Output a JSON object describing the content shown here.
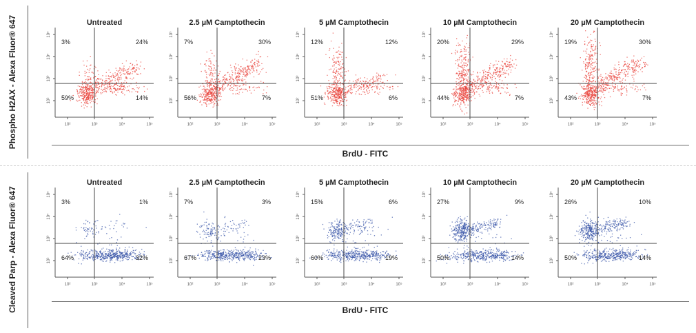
{
  "figure": {
    "panels": [
      {
        "id": "h2ax",
        "ylabel": "Phospho H2AX - Alexa Fluor® 647",
        "xlabel": "BrdU - FITC",
        "color": "#e8413a",
        "plots": [
          {
            "title": "Untreated",
            "quadrants": {
              "ul": "3%",
              "ur": "24%",
              "ll": "59%",
              "lr": "14%"
            }
          },
          {
            "title": "2.5 µM Camptothecin",
            "quadrants": {
              "ul": "7%",
              "ur": "30%",
              "ll": "56%",
              "lr": "7%"
            }
          },
          {
            "title": "5 µM Camptothecin",
            "quadrants": {
              "ul": "12%",
              "ur": "12%",
              "ll": "51%",
              "lr": "6%"
            }
          },
          {
            "title": "10 µM Camptothecin",
            "quadrants": {
              "ul": "20%",
              "ur": "29%",
              "ll": "44%",
              "lr": "7%"
            }
          },
          {
            "title": "20 µM Camptothecin",
            "quadrants": {
              "ul": "19%",
              "ur": "30%",
              "ll": "43%",
              "lr": "7%"
            }
          }
        ]
      },
      {
        "id": "parp",
        "ylabel": "Cleaved Parp - Alexa Fluor® 647",
        "xlabel": "BrdU - FITC",
        "color": "#3a55a8",
        "plots": [
          {
            "title": "Untreated",
            "quadrants": {
              "ul": "3%",
              "ur": "1%",
              "ll": "64%",
              "lr": "32%"
            }
          },
          {
            "title": "2.5 µM Camptothecin",
            "quadrants": {
              "ul": "7%",
              "ur": "3%",
              "ll": "67%",
              "lr": "23%"
            }
          },
          {
            "title": "5 µM Camptothecin",
            "quadrants": {
              "ul": "15%",
              "ur": "6%",
              "ll": "60%",
              "lr": "19%"
            }
          },
          {
            "title": "10 µM Camptothecin",
            "quadrants": {
              "ul": "27%",
              "ur": "9%",
              "ll": "50%",
              "lr": "14%"
            }
          },
          {
            "title": "20 µM Camptothecin",
            "quadrants": {
              "ul": "26%",
              "ur": "10%",
              "ll": "50%",
              "lr": "14%"
            }
          }
        ]
      }
    ]
  },
  "chart_data": [
    {
      "type": "scatter",
      "panel": "h2ax",
      "xlabel": "BrdU - FITC",
      "ylabel": "Phospho H2AX - Alexa Fluor® 647",
      "xscale": "log",
      "yscale": "log",
      "xticks": [
        "10²",
        "10³",
        "10⁴",
        "10⁵"
      ],
      "yticks": [
        "10²",
        "10³",
        "10⁴",
        "10⁵"
      ],
      "series": [
        {
          "title": "Untreated",
          "quadrant_percent": {
            "upper_left": 3,
            "upper_right": 24,
            "lower_left": 59,
            "lower_right": 14
          }
        },
        {
          "title": "2.5 µM Camptothecin",
          "quadrant_percent": {
            "upper_left": 7,
            "upper_right": 30,
            "lower_left": 56,
            "lower_right": 7
          }
        },
        {
          "title": "5 µM Camptothecin",
          "quadrant_percent": {
            "upper_left": 12,
            "upper_right": 12,
            "lower_left": 51,
            "lower_right": 6
          }
        },
        {
          "title": "10 µM Camptothecin",
          "quadrant_percent": {
            "upper_left": 20,
            "upper_right": 29,
            "lower_left": 44,
            "lower_right": 7
          }
        },
        {
          "title": "20 µM Camptothecin",
          "quadrant_percent": {
            "upper_left": 19,
            "upper_right": 30,
            "lower_left": 43,
            "lower_right": 7
          }
        }
      ]
    },
    {
      "type": "scatter",
      "panel": "parp",
      "xlabel": "BrdU - FITC",
      "ylabel": "Cleaved Parp - Alexa Fluor® 647",
      "xscale": "log",
      "yscale": "log",
      "xticks": [
        "10²",
        "10³",
        "10⁴",
        "10⁵"
      ],
      "yticks": [
        "10²",
        "10³",
        "10⁴",
        "10⁵"
      ],
      "series": [
        {
          "title": "Untreated",
          "quadrant_percent": {
            "upper_left": 3,
            "upper_right": 1,
            "lower_left": 64,
            "lower_right": 32
          }
        },
        {
          "title": "2.5 µM Camptothecin",
          "quadrant_percent": {
            "upper_left": 7,
            "upper_right": 3,
            "lower_left": 67,
            "lower_right": 23
          }
        },
        {
          "title": "5 µM Camptothecin",
          "quadrant_percent": {
            "upper_left": 15,
            "upper_right": 6,
            "lower_left": 60,
            "lower_right": 19
          }
        },
        {
          "title": "10 µM Camptothecin",
          "quadrant_percent": {
            "upper_left": 27,
            "upper_right": 9,
            "lower_left": 50,
            "lower_right": 14
          }
        },
        {
          "title": "20 µM Camptothecin",
          "quadrant_percent": {
            "upper_left": 26,
            "upper_right": 10,
            "lower_left": 50,
            "lower_right": 14
          }
        }
      ]
    }
  ]
}
